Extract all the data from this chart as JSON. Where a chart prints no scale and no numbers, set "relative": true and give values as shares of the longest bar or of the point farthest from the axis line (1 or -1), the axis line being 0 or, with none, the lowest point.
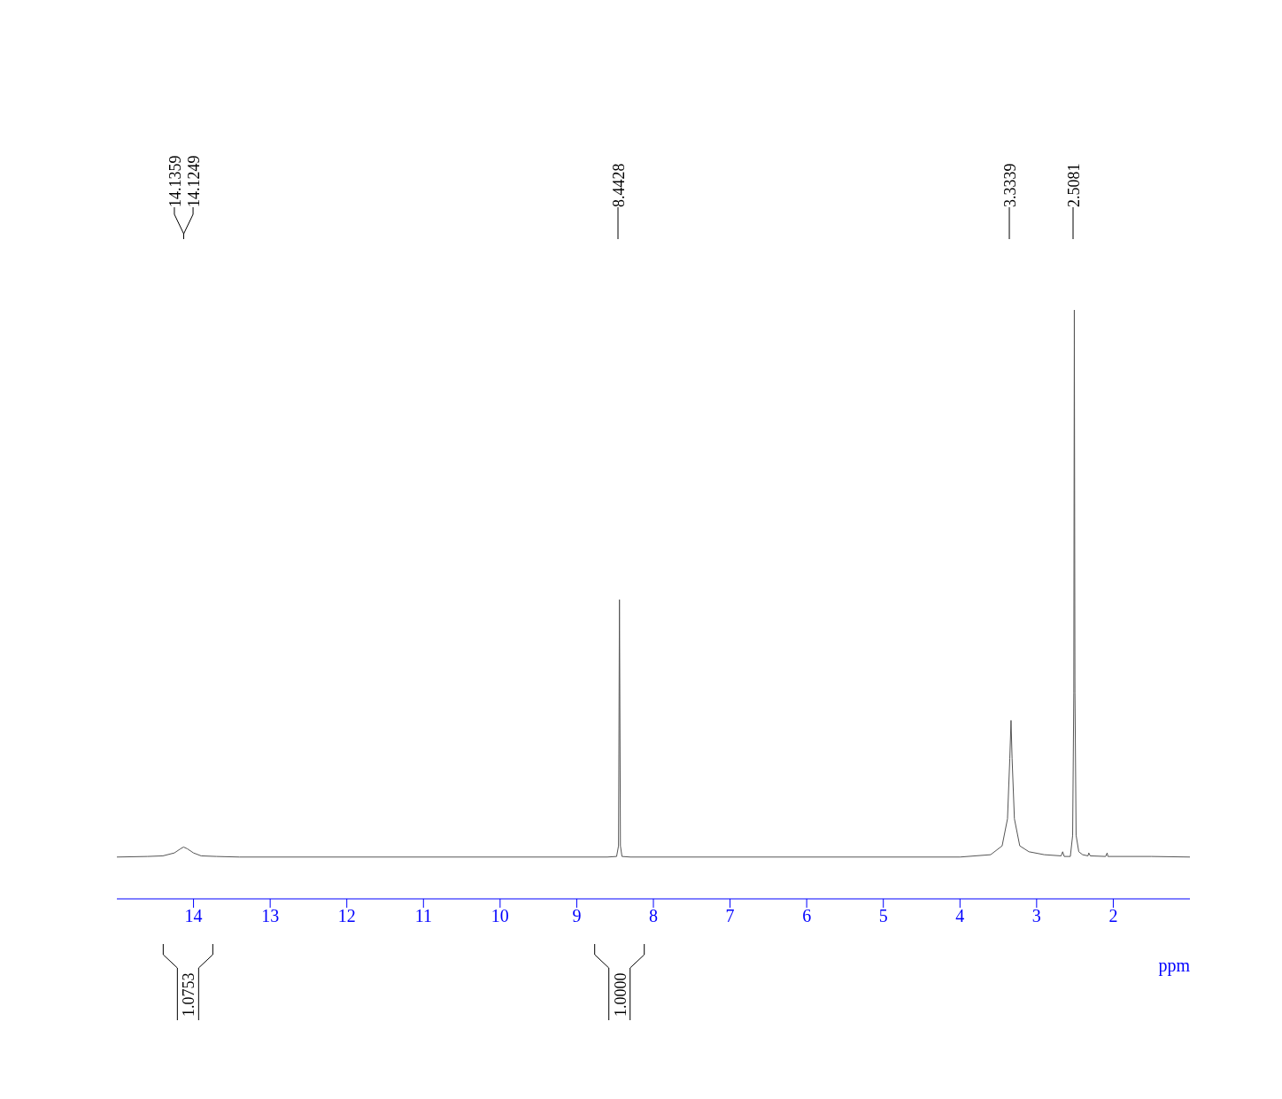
{
  "chart_data": {
    "type": "line",
    "relative": true,
    "xlabel": "ppm",
    "xlim": [
      15,
      1
    ],
    "xticks": [
      14,
      13,
      12,
      11,
      10,
      9,
      8,
      7,
      6,
      5,
      4,
      3,
      2
    ],
    "marker": "none",
    "line_style": "solid",
    "series": [
      {
        "color": "#555555",
        "x": [
          15.0,
          14.6,
          14.4,
          14.25,
          14.17,
          14.13,
          14.08,
          14.0,
          13.9,
          13.7,
          13.4,
          8.6,
          8.48,
          8.455,
          8.4428,
          8.43,
          8.41,
          8.3,
          4.0,
          3.6,
          3.45,
          3.38,
          3.35,
          3.3339,
          3.32,
          3.29,
          3.22,
          3.1,
          2.9,
          2.68,
          2.66,
          2.64,
          2.56,
          2.53,
          2.515,
          2.5081,
          2.5,
          2.485,
          2.45,
          2.4,
          2.33,
          2.32,
          2.3,
          2.1,
          2.08,
          2.07,
          1.5,
          1.0
        ],
        "values": [
          0.071,
          0.072,
          0.073,
          0.078,
          0.085,
          0.088,
          0.085,
          0.078,
          0.073,
          0.072,
          0.071,
          0.071,
          0.072,
          0.09,
          0.508,
          0.09,
          0.072,
          0.071,
          0.071,
          0.075,
          0.09,
          0.136,
          0.238,
          0.303,
          0.238,
          0.136,
          0.09,
          0.08,
          0.075,
          0.073,
          0.08,
          0.072,
          0.072,
          0.108,
          0.35,
          1,
          0.35,
          0.108,
          0.08,
          0.075,
          0.073,
          0.078,
          0.073,
          0.072,
          0.078,
          0.072,
          0.072,
          0.071
        ]
      }
    ],
    "annotations": [
      "14.1359",
      "14.1249",
      "8.4428",
      "3.3339",
      "2.5081",
      "1.0753",
      "1.0000"
    ]
  }
}
